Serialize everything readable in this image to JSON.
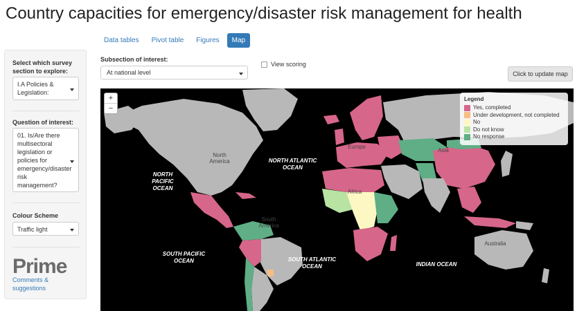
{
  "page": {
    "title": "Country capacities for emergency/disaster risk management for health"
  },
  "tabs": [
    {
      "label": "Data tables",
      "active": false
    },
    {
      "label": "Pivot table",
      "active": false
    },
    {
      "label": "Figures",
      "active": false
    },
    {
      "label": "Map",
      "active": true
    }
  ],
  "sidebar": {
    "section_label": "Select which survey section to explore:",
    "section_value": "I.A Policies & Legislation:",
    "question_label": "Question of interest:",
    "question_value": "01. Is/Are there multisectoral legislation or policies for emergency/disaster risk management?",
    "colour_label": "Colour Scheme",
    "colour_value": "Traffic light",
    "logo_text": "Prime",
    "comments_link": "Comments & suggestions"
  },
  "controls": {
    "subsection_label": "Subsection of interest:",
    "subsection_value": "At national level",
    "view_scoring_label": "View scoring",
    "update_button": "Click to update map"
  },
  "map": {
    "zoom_in": "+",
    "zoom_out": "−",
    "legend": {
      "title": "Legend",
      "items": [
        {
          "label": "Yes, completed",
          "color": "#d6668a"
        },
        {
          "label": "Under development, not completed",
          "color": "#f6bd85"
        },
        {
          "label": "No",
          "color": "#fdf8c3"
        },
        {
          "label": "Do not know",
          "color": "#b9e3a3"
        },
        {
          "label": "No response",
          "color": "#5fae86"
        }
      ]
    },
    "oceans": {
      "north_pacific": "NORTH PACIFIC OCEAN",
      "north_atlantic": "NORTH ATLANTIC OCEAN",
      "south_pacific": "SOUTH PACIFIC OCEAN",
      "south_atlantic": "SOUTH ATLANTIC OCEAN",
      "indian": "INDIAN OCEAN"
    },
    "continents": {
      "north_america": "North America",
      "south_america": "South America",
      "europe": "Europe",
      "africa": "Africa",
      "asia": "Asia",
      "australia": "Australia"
    },
    "colors": {
      "land_default": "#b8b8b8",
      "ocean": "#000000"
    }
  }
}
